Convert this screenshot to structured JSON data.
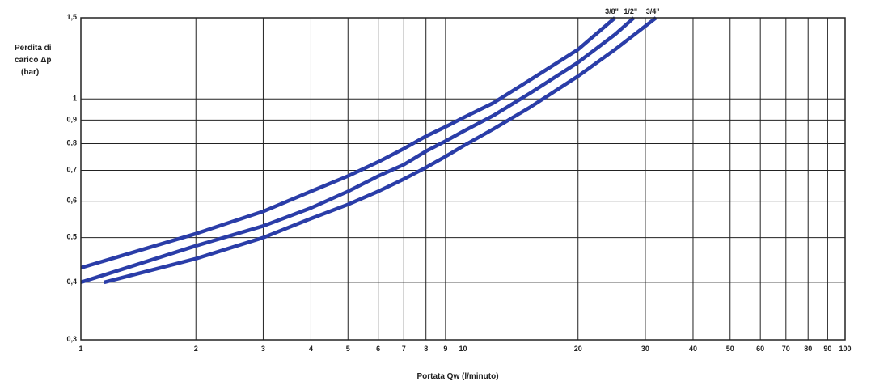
{
  "chart_data": {
    "type": "line",
    "x_scale": "log",
    "y_scale": "log",
    "xlim": [
      1,
      100
    ],
    "ylim": [
      0.3,
      1.5
    ],
    "grid": true,
    "ylabel_lines": [
      "Perdita di",
      "carico Δp",
      "(bar)"
    ],
    "xlabel": "Portata Qw (l/minuto)",
    "x_ticks": [
      1,
      2,
      3,
      4,
      5,
      6,
      7,
      8,
      9,
      10,
      20,
      30,
      40,
      50,
      60,
      70,
      80,
      90,
      100
    ],
    "x_tick_labels": [
      "1",
      "2",
      "3",
      "4",
      "5",
      "6",
      "7",
      "8",
      "9",
      "10",
      "20",
      "30",
      "40",
      "50",
      "60",
      "70",
      "80",
      "90",
      "100"
    ],
    "y_ticks": [
      0.3,
      0.4,
      0.5,
      0.6,
      0.7,
      0.8,
      0.9,
      1,
      1.5
    ],
    "y_tick_labels": [
      "0,3",
      "0,4",
      "0,5",
      "0,6",
      "0,7",
      "0,8",
      "0,9",
      "1",
      "1,5"
    ],
    "series": [
      {
        "name": "3/8\"",
        "color": "#2a3da8",
        "x": [
          1,
          2,
          3,
          4,
          5,
          6,
          7,
          8,
          9,
          10,
          12,
          15,
          20,
          25
        ],
        "y": [
          0.43,
          0.51,
          0.57,
          0.63,
          0.68,
          0.73,
          0.78,
          0.83,
          0.87,
          0.91,
          0.98,
          1.1,
          1.28,
          1.5
        ]
      },
      {
        "name": "1/2\"",
        "color": "#2a3da8",
        "x": [
          1,
          2,
          3,
          4,
          5,
          6,
          7,
          8,
          9,
          10,
          12,
          15,
          20,
          25,
          28
        ],
        "y": [
          0.4,
          0.48,
          0.53,
          0.58,
          0.63,
          0.68,
          0.72,
          0.77,
          0.81,
          0.85,
          0.92,
          1.03,
          1.2,
          1.38,
          1.5
        ]
      },
      {
        "name": "3/4\"",
        "color": "#2a3da8",
        "x": [
          1.15,
          2,
          3,
          4,
          5,
          6,
          7,
          8,
          9,
          10,
          12,
          15,
          20,
          25,
          32
        ],
        "y": [
          0.4,
          0.45,
          0.5,
          0.55,
          0.59,
          0.63,
          0.67,
          0.71,
          0.75,
          0.79,
          0.86,
          0.96,
          1.12,
          1.28,
          1.5
        ]
      }
    ]
  }
}
